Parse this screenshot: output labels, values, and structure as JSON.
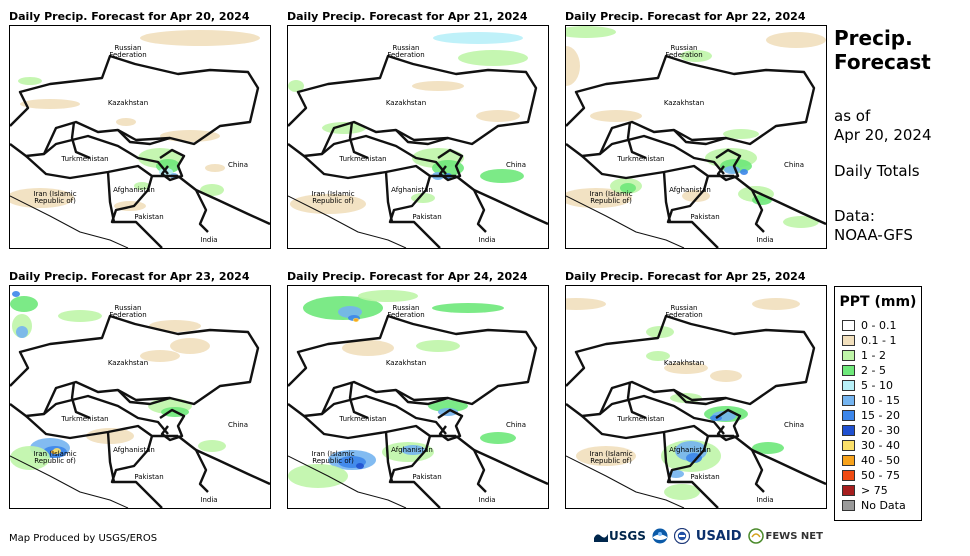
{
  "panels": [
    {
      "title": "Daily Precip. Forecast for Apr 20, 2024"
    },
    {
      "title": "Daily Precip. Forecast for Apr 21, 2024"
    },
    {
      "title": "Daily Precip. Forecast for Apr 22, 2024"
    },
    {
      "title": "Daily Precip. Forecast for Apr 23, 2024"
    },
    {
      "title": "Daily Precip. Forecast for Apr 24, 2024"
    },
    {
      "title": "Daily Precip. Forecast for Apr 25, 2024"
    }
  ],
  "map_labels": {
    "russia_1": "Russian",
    "russia_2": "Federation",
    "kazakhstan": "Kazakhstan",
    "turkmenistan": "Turkmenistan",
    "china": "China",
    "iran_1": "Iran  (Islamic",
    "iran_2": "Republic of)",
    "afghanistan": "Afghanistan",
    "pakistan": "Pakistan",
    "india": "India"
  },
  "side": {
    "title_line1": "Precip.",
    "title_line2": "Forecast",
    "as_of_label": "as of",
    "as_of_date": "Apr 20, 2024",
    "totals": "Daily Totals",
    "data_label": "Data:",
    "data_source": "NOAA-GFS"
  },
  "legend": {
    "title": "PPT (mm)",
    "items": [
      {
        "label": "0 - 0.1",
        "color": "#ffffff"
      },
      {
        "label": "0.1 - 1",
        "color": "#f1dfbc"
      },
      {
        "label": "1 - 2",
        "color": "#bff5a8"
      },
      {
        "label": "2 - 5",
        "color": "#6ee87a"
      },
      {
        "label": "5 - 10",
        "color": "#b8f0f8"
      },
      {
        "label": "10 - 15",
        "color": "#74b4f0"
      },
      {
        "label": "15 - 20",
        "color": "#3c86ea"
      },
      {
        "label": "20 - 30",
        "color": "#1f50d0"
      },
      {
        "label": "30 - 40",
        "color": "#fbe06a"
      },
      {
        "label": "40 - 50",
        "color": "#f7a21b"
      },
      {
        "label": "50 - 75",
        "color": "#ee4a12"
      },
      {
        "label": "> 75",
        "color": "#a61e1e"
      },
      {
        "label": "No Data",
        "color": "#9a9a9a"
      }
    ]
  },
  "footer": {
    "credit": "Map Produced by USGS/EROS",
    "logo_usgs": "USGS",
    "logo_usaid": "USAID",
    "logo_fewsnet": "FEWS NET"
  }
}
